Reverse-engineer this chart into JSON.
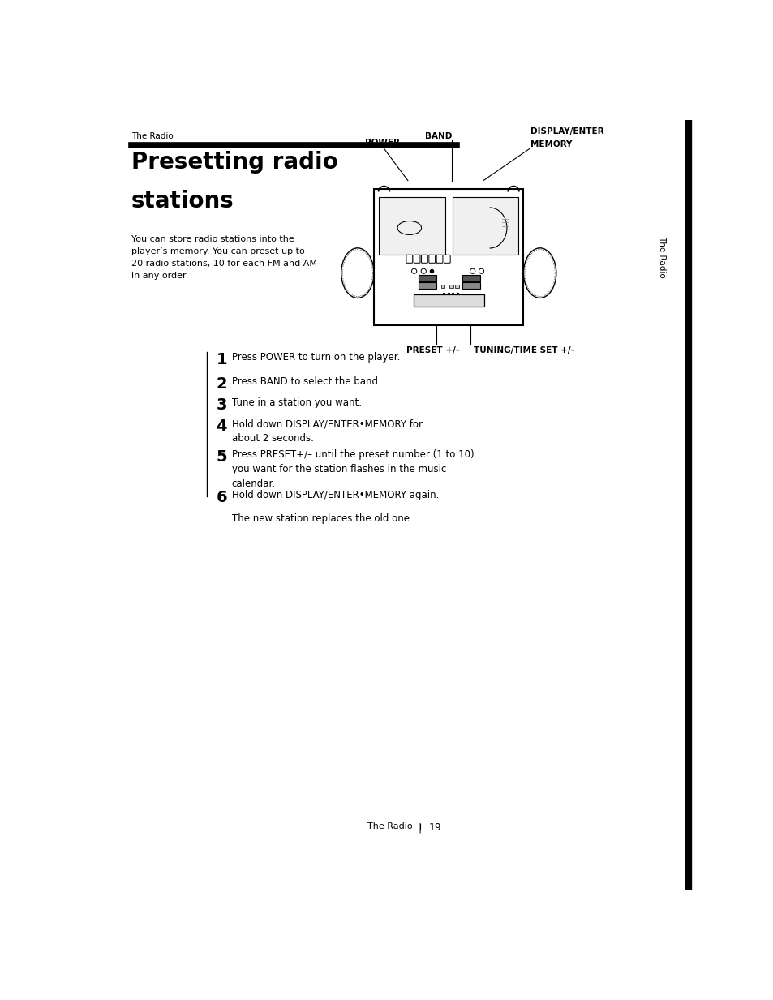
{
  "bg_color": "#ffffff",
  "page_width": 9.54,
  "page_height": 12.33,
  "header_text": "The Radio",
  "title_line1": "Presetting radio",
  "title_line2": "stations",
  "intro_text": "You can store radio stations into the\nplayer’s memory. You can preset up to\n20 radio stations, 10 for each FM and AM\nin any order.",
  "sidebar_text": "The Radio",
  "steps": [
    {
      "num": "1",
      "text": "Press POWER to turn on the player."
    },
    {
      "num": "2",
      "text": "Press BAND to select the band."
    },
    {
      "num": "3",
      "text": "Tune in a station you want."
    },
    {
      "num": "4",
      "text": "Hold down DISPLAY/ENTER•MEMORY for\nabout 2 seconds."
    },
    {
      "num": "5",
      "text": "Press PRESET+/– until the preset number (1 to 10)\nyou want for the station flashes in the music\ncalendar."
    },
    {
      "num": "6",
      "text": "Hold down DISPLAY/ENTER•MEMORY again."
    }
  ],
  "note_text": "The new station replaces the old one.",
  "footer_text": "The Radio",
  "page_number": "19",
  "label_power": "POWER",
  "label_band": "BAND",
  "label_display1": "DISPLAY/ENTER",
  "label_display2": "MEMORY",
  "label_preset": "PRESET +/–",
  "label_tuning": "TUNING/TIME SET +/–"
}
